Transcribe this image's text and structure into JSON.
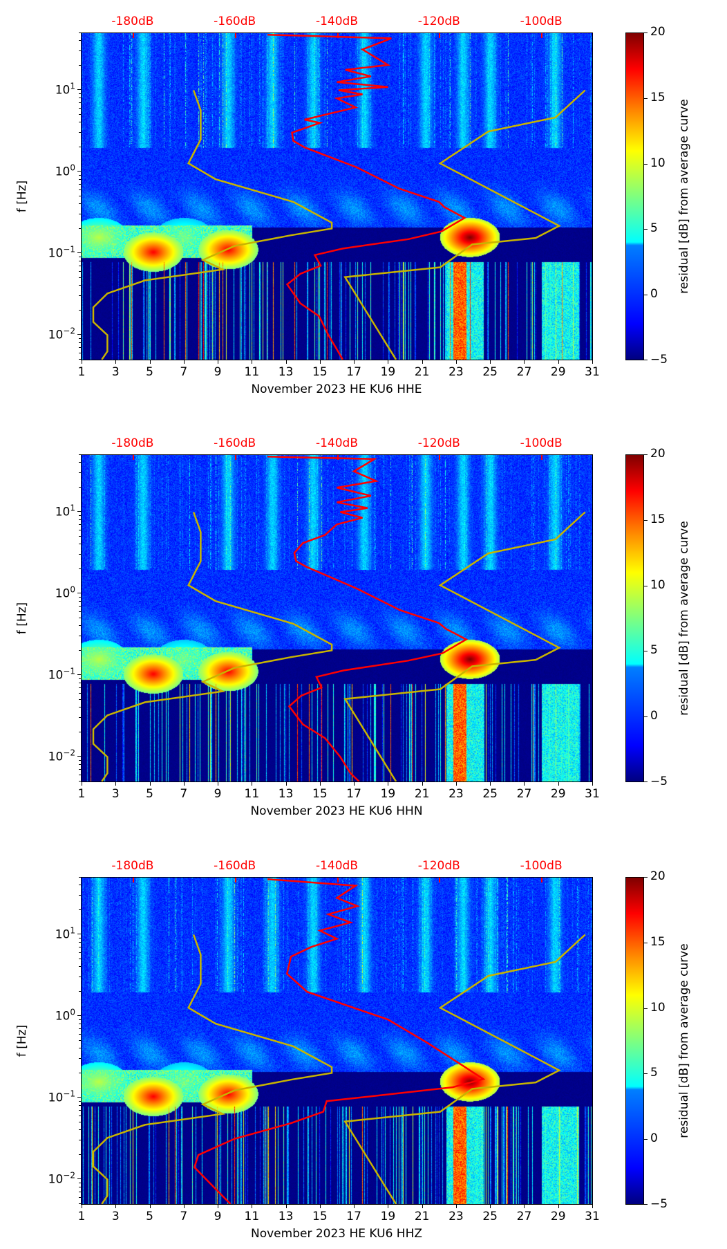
{
  "chart_data": {
    "type": "heatmap",
    "x_range": [
      1,
      31
    ],
    "x_ticks": [
      "1",
      "3",
      "5",
      "7",
      "9",
      "11",
      "13",
      "15",
      "17",
      "19",
      "21",
      "23",
      "25",
      "27",
      "29",
      "31"
    ],
    "y_range_hz": [
      0.005,
      50
    ],
    "y_scale": "log",
    "y_ticks": [
      {
        "exp": 1,
        "label": "10"
      },
      {
        "exp": 0,
        "label": "10"
      },
      {
        "exp": -1,
        "label": "10"
      },
      {
        "exp": -2,
        "label": "10"
      }
    ],
    "y_tick_exponents": [
      "1",
      "0",
      "−1",
      "−2"
    ],
    "ylabel": "f [Hz]",
    "top_axis": {
      "labels": [
        "-180dB",
        "-160dB",
        "-140dB",
        "-120dB",
        "-100dB"
      ],
      "days": [
        4,
        10,
        16,
        22,
        28
      ],
      "color": "#ff0000"
    },
    "colorbar": {
      "label": "residual [dB] from average curve",
      "range": [
        -5,
        20
      ],
      "ticks": [
        "20",
        "15",
        "10",
        "5",
        "0",
        "−5"
      ],
      "colormap": "jet"
    },
    "hotspots": [
      {
        "day": 23.8,
        "log_f": -0.8,
        "value": 20
      },
      {
        "day": 5.2,
        "log_f": -0.98,
        "value": 17
      },
      {
        "day": 9.6,
        "log_f": -0.95,
        "value": 17
      },
      {
        "day": 2,
        "log_f": -0.8,
        "value": 9
      },
      {
        "day": 7,
        "log_f": -0.8,
        "value": 7
      }
    ],
    "panels": [
      {
        "xlabel": "November 2023 HE KU6  HHE",
        "series": [
          {
            "name": "red-curve",
            "color": "#ff0000",
            "points": [
              [
                11.92,
                1.68
              ],
              [
                19.2,
                1.636
              ],
              [
                17.5,
                1.5
              ],
              [
                19,
                1.31
              ],
              [
                16.5,
                1.25
              ],
              [
                18,
                1.17
              ],
              [
                16,
                1.1
              ],
              [
                19,
                1.04
              ],
              [
                16.1,
                1.0
              ],
              [
                17.5,
                0.95
              ],
              [
                16,
                0.9
              ],
              [
                17.1,
                0.79
              ],
              [
                15.5,
                0.71
              ],
              [
                14.1,
                0.64
              ],
              [
                15,
                0.6
              ],
              [
                13.36,
                0.48
              ],
              [
                13.44,
                0.38
              ],
              [
                14.1,
                0.3
              ],
              [
                17.17,
                0.055
              ],
              [
                19.66,
                -0.205
              ],
              [
                22.0,
                -0.368
              ],
              [
                22.3,
                -0.43
              ],
              [
                23.5,
                -0.565
              ],
              [
                22.15,
                -0.73
              ],
              [
                20.2,
                -0.825
              ],
              [
                16.35,
                -0.94
              ],
              [
                14.7,
                -1.02
              ],
              [
                15.05,
                -1.15
              ],
              [
                13.85,
                -1.25
              ],
              [
                13.08,
                -1.38
              ],
              [
                13.85,
                -1.61
              ],
              [
                14.96,
                -1.77
              ],
              [
                15.5,
                -2.0
              ],
              [
                16.07,
                -2.2
              ],
              [
                16.34,
                -2.3
              ]
            ]
          },
          {
            "name": "yellow-curve-left",
            "color": "#c8b400",
            "points": [
              [
                7.58,
                1.0
              ],
              [
                8.0,
                0.755
              ],
              [
                8.0,
                0.397
              ],
              [
                7.28,
                0.104
              ],
              [
                8.88,
                -0.091
              ],
              [
                13.44,
                -0.368
              ],
              [
                15.7,
                -0.623
              ],
              [
                15.7,
                -0.695
              ],
              [
                13.3,
                -0.777
              ],
              [
                9.98,
                -0.909
              ],
              [
                8.13,
                -1.08
              ],
              [
                9.29,
                -1.196
              ],
              [
                4.73,
                -1.33
              ],
              [
                2.52,
                -1.49
              ],
              [
                1.69,
                -1.66
              ],
              [
                1.69,
                -1.84
              ],
              [
                2.52,
                -2.0
              ],
              [
                2.52,
                -2.2
              ],
              [
                2.19,
                -2.3
              ]
            ]
          },
          {
            "name": "yellow-curve-right",
            "color": "#c8b400",
            "points": [
              [
                30.58,
                1.0
              ],
              [
                28.84,
                0.667
              ],
              [
                24.9,
                0.495
              ],
              [
                22.07,
                0.104
              ],
              [
                29.06,
                -0.662
              ],
              [
                27.68,
                -0.81
              ],
              [
                23.95,
                -0.89
              ],
              [
                22.07,
                -1.17
              ],
              [
                16.48,
                -1.29
              ],
              [
                19.47,
                -2.3
              ]
            ]
          }
        ]
      },
      {
        "xlabel": "November 2023 HE KU6  HHN",
        "series": [
          {
            "name": "red-curve",
            "color": "#ff0000",
            "points": [
              [
                11.92,
                1.68
              ],
              [
                18.2,
                1.65
              ],
              [
                17,
                1.5
              ],
              [
                18.3,
                1.38
              ],
              [
                16,
                1.3
              ],
              [
                18,
                1.2
              ],
              [
                16,
                1.12
              ],
              [
                17.8,
                1.05
              ],
              [
                16.2,
                1.0
              ],
              [
                17.5,
                0.93
              ],
              [
                16,
                0.85
              ],
              [
                15.3,
                0.72
              ],
              [
                14,
                0.62
              ],
              [
                13.5,
                0.5
              ],
              [
                13.6,
                0.4
              ],
              [
                14.2,
                0.33
              ],
              [
                17.2,
                0.06
              ],
              [
                19.7,
                -0.2
              ],
              [
                22.0,
                -0.36
              ],
              [
                22.4,
                -0.43
              ],
              [
                23.6,
                -0.56
              ],
              [
                22.2,
                -0.73
              ],
              [
                20.2,
                -0.82
              ],
              [
                16.4,
                -0.94
              ],
              [
                14.8,
                -1.02
              ],
              [
                15.1,
                -1.15
              ],
              [
                13.9,
                -1.25
              ],
              [
                13.2,
                -1.38
              ],
              [
                14,
                -1.6
              ],
              [
                15.3,
                -1.77
              ],
              [
                16.2,
                -2.0
              ],
              [
                16.8,
                -2.2
              ],
              [
                17.3,
                -2.3
              ]
            ]
          },
          {
            "name": "yellow-curve-left",
            "color": "#c8b400",
            "points": [
              [
                7.58,
                1.0
              ],
              [
                8.0,
                0.755
              ],
              [
                8.0,
                0.397
              ],
              [
                7.28,
                0.104
              ],
              [
                8.88,
                -0.091
              ],
              [
                13.44,
                -0.368
              ],
              [
                15.7,
                -0.623
              ],
              [
                15.7,
                -0.695
              ],
              [
                13.3,
                -0.777
              ],
              [
                9.98,
                -0.909
              ],
              [
                8.13,
                -1.08
              ],
              [
                9.29,
                -1.196
              ],
              [
                4.73,
                -1.33
              ],
              [
                2.52,
                -1.49
              ],
              [
                1.69,
                -1.66
              ],
              [
                1.69,
                -1.84
              ],
              [
                2.52,
                -2.0
              ],
              [
                2.52,
                -2.2
              ],
              [
                2.19,
                -2.3
              ]
            ]
          },
          {
            "name": "yellow-curve-right",
            "color": "#c8b400",
            "points": [
              [
                30.58,
                1.0
              ],
              [
                28.84,
                0.667
              ],
              [
                24.9,
                0.495
              ],
              [
                22.07,
                0.104
              ],
              [
                29.06,
                -0.662
              ],
              [
                27.68,
                -0.81
              ],
              [
                23.95,
                -0.89
              ],
              [
                22.07,
                -1.17
              ],
              [
                16.48,
                -1.29
              ],
              [
                19.47,
                -2.3
              ]
            ]
          }
        ]
      },
      {
        "xlabel": "November 2023 HE KU6  HHZ",
        "series": [
          {
            "name": "red-curve",
            "color": "#ff0000",
            "points": [
              [
                11.92,
                1.68
              ],
              [
                17.1,
                1.6
              ],
              [
                16,
                1.45
              ],
              [
                17.2,
                1.35
              ],
              [
                15.5,
                1.25
              ],
              [
                16.8,
                1.15
              ],
              [
                15,
                1.05
              ],
              [
                16,
                0.95
              ],
              [
                14.5,
                0.85
              ],
              [
                13.3,
                0.73
              ],
              [
                13.07,
                0.52
              ],
              [
                14.25,
                0.3
              ],
              [
                19.0,
                -0.04
              ],
              [
                21.35,
                -0.33
              ],
              [
                23.5,
                -0.62
              ],
              [
                24.6,
                -0.77
              ],
              [
                22.8,
                -0.87
              ],
              [
                18.5,
                -0.97
              ],
              [
                15.4,
                -1.04
              ],
              [
                15.2,
                -1.17
              ],
              [
                13.3,
                -1.31
              ],
              [
                10.0,
                -1.5
              ],
              [
                7.86,
                -1.7
              ],
              [
                7.63,
                -1.85
              ],
              [
                8.8,
                -2.1
              ],
              [
                9.75,
                -2.3
              ]
            ]
          },
          {
            "name": "yellow-curve-left",
            "color": "#c8b400",
            "points": [
              [
                7.58,
                1.0
              ],
              [
                8.0,
                0.755
              ],
              [
                8.0,
                0.397
              ],
              [
                7.28,
                0.104
              ],
              [
                8.88,
                -0.091
              ],
              [
                13.44,
                -0.368
              ],
              [
                15.7,
                -0.623
              ],
              [
                15.7,
                -0.695
              ],
              [
                13.3,
                -0.777
              ],
              [
                9.98,
                -0.909
              ],
              [
                8.13,
                -1.08
              ],
              [
                9.29,
                -1.196
              ],
              [
                4.73,
                -1.33
              ],
              [
                2.52,
                -1.49
              ],
              [
                1.69,
                -1.66
              ],
              [
                1.69,
                -1.84
              ],
              [
                2.52,
                -2.0
              ],
              [
                2.52,
                -2.2
              ],
              [
                2.19,
                -2.3
              ]
            ]
          },
          {
            "name": "yellow-curve-right",
            "color": "#c8b400",
            "points": [
              [
                30.58,
                1.0
              ],
              [
                28.84,
                0.667
              ],
              [
                24.9,
                0.495
              ],
              [
                22.07,
                0.104
              ],
              [
                29.06,
                -0.662
              ],
              [
                27.68,
                -0.81
              ],
              [
                23.95,
                -0.89
              ],
              [
                22.07,
                -1.17
              ],
              [
                16.48,
                -1.29
              ],
              [
                19.47,
                -2.3
              ]
            ]
          }
        ]
      }
    ]
  }
}
